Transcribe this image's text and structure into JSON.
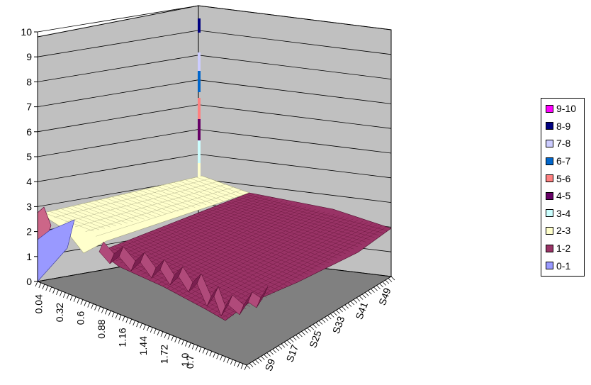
{
  "chart_data": {
    "type": "surface",
    "title": "",
    "xlabel": "",
    "ylabel": "",
    "zlabel": "",
    "zlim": [
      0,
      10
    ],
    "z_ticks": [
      "0",
      "1",
      "2",
      "3",
      "4",
      "5",
      "6",
      "7",
      "8",
      "9",
      "10"
    ],
    "x_ticks": [
      "0.04",
      "0.32",
      "0.6",
      "0.88",
      "1.16",
      "1.44",
      "1.72",
      "1.0",
      "0.7"
    ],
    "series_ticks": [
      "S9",
      "S17",
      "S25",
      "S33",
      "S41",
      "S49"
    ],
    "grid": true,
    "legend": {
      "position": "right",
      "entries": [
        {
          "label": "9-10",
          "color": "#ff00ff"
        },
        {
          "label": "8-9",
          "color": "#000080"
        },
        {
          "label": "7-8",
          "color": "#ccccff"
        },
        {
          "label": "6-7",
          "color": "#0066cc"
        },
        {
          "label": "5-6",
          "color": "#ff8080"
        },
        {
          "label": "4-5",
          "color": "#660066"
        },
        {
          "label": "3-4",
          "color": "#ccffff"
        },
        {
          "label": "2-3",
          "color": "#ffffcc"
        },
        {
          "label": "1-2",
          "color": "#993366"
        },
        {
          "label": "0-1",
          "color": "#9999ff"
        }
      ]
    },
    "surface_summary": {
      "plateau_near_front_left": 2.4,
      "main_surface_level": 1.3,
      "spike_at_back_corner": 10
    }
  }
}
